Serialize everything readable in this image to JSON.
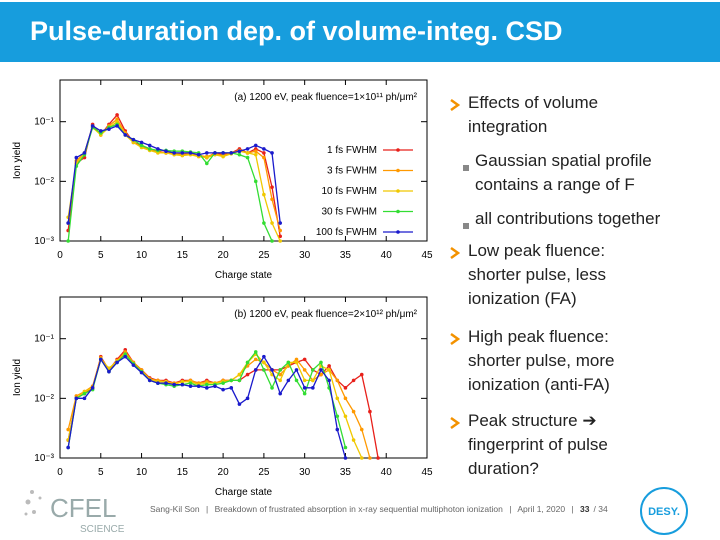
{
  "header": {
    "title": "Pulse-duration dep. of volume-integ. CSD"
  },
  "bullets": [
    {
      "level": 1,
      "lines": [
        "Effects of volume",
        "integration"
      ]
    },
    {
      "level": 2,
      "lines": [
        "Gaussian spatial profile",
        "contains a range of F"
      ]
    },
    {
      "level": 2,
      "lines": [
        "all contributions together"
      ]
    },
    {
      "level": 1,
      "lines": [
        "Low peak fluence:",
        "shorter pulse, less",
        "ionization (FA)"
      ]
    },
    {
      "level": 1,
      "lines": [
        "High peak fluence:",
        "shorter pulse, more",
        "ionization (anti-FA)"
      ]
    },
    {
      "level": 1,
      "lines": [
        "Peak structure ➔",
        "fingerprint of pulse",
        "duration?"
      ]
    }
  ],
  "footer": {
    "parts": [
      "Sang-Kil Son",
      "|",
      "Breakdown of frustrated absorption in x-ray sequential multiphoton ionization",
      "|",
      "April 1, 2020",
      "|",
      "33",
      "/ 34"
    ]
  },
  "logos": {
    "left": "CFEL",
    "left_sub": "SCIENCE",
    "right": "DESY."
  },
  "chart_data": [
    {
      "type": "line",
      "title": "(a) 1200 eV, peak fluence=1×10¹¹ ph/μm²",
      "x_label": "Charge state",
      "y_label": "Ion yield",
      "log_y": true,
      "legend": "right",
      "xlim": [
        0,
        45
      ],
      "xticks": [
        0,
        5,
        10,
        15,
        20,
        25,
        30,
        35,
        40,
        45
      ],
      "ylim": [
        0.001,
        0.5
      ],
      "yticks": [
        {
          "value": 0.001,
          "label": "10⁻³"
        },
        {
          "value": 0.01,
          "label": "10⁻²"
        },
        {
          "value": 0.1,
          "label": "10⁻¹"
        }
      ],
      "x": [
        1,
        2,
        3,
        4,
        5,
        6,
        7,
        8,
        9,
        10,
        11,
        12,
        13,
        14,
        15,
        16,
        17,
        18,
        19,
        20,
        21,
        22,
        23,
        24,
        25,
        26,
        27
      ],
      "series": [
        {
          "name": "1 fs FWHM",
          "color": "#e8201a",
          "values": [
            0.0015,
            0.02,
            0.025,
            0.09,
            0.06,
            0.09,
            0.13,
            0.07,
            0.045,
            0.04,
            0.035,
            0.032,
            0.03,
            0.03,
            0.028,
            0.03,
            0.028,
            0.025,
            0.03,
            0.028,
            0.03,
            0.035,
            0.03,
            0.035,
            0.03,
            0.008,
            0.0012
          ]
        },
        {
          "name": "3 fs FWHM",
          "color": "#ff9900",
          "values": [
            0.002,
            0.022,
            0.03,
            0.085,
            0.06,
            0.085,
            0.11,
            0.065,
            0.045,
            0.038,
            0.034,
            0.031,
            0.03,
            0.029,
            0.028,
            0.029,
            0.027,
            0.026,
            0.029,
            0.027,
            0.03,
            0.033,
            0.03,
            0.032,
            0.025,
            0.005,
            0.0015
          ]
        },
        {
          "name": "10 fs FWHM",
          "color": "#f0c800",
          "values": [
            0.0025,
            0.02,
            0.03,
            0.08,
            0.06,
            0.08,
            0.1,
            0.06,
            0.045,
            0.037,
            0.033,
            0.03,
            0.03,
            0.028,
            0.027,
            0.028,
            0.026,
            0.025,
            0.028,
            0.026,
            0.029,
            0.032,
            0.03,
            0.028,
            0.006,
            0.002,
            0.001
          ]
        },
        {
          "name": "30 fs FWHM",
          "color": "#33dd33",
          "values": [
            0.001,
            0.018,
            0.028,
            0.08,
            0.065,
            0.08,
            0.09,
            0.06,
            0.05,
            0.04,
            0.035,
            0.033,
            0.033,
            0.032,
            0.032,
            0.031,
            0.03,
            0.02,
            0.03,
            0.03,
            0.03,
            0.028,
            0.025,
            0.01,
            0.002,
            0.001,
            null
          ]
        },
        {
          "name": "100 fs FWHM",
          "color": "#1a1acc",
          "values": [
            0.002,
            0.025,
            0.03,
            0.085,
            0.07,
            0.075,
            0.085,
            0.06,
            0.05,
            0.045,
            0.04,
            0.035,
            0.032,
            0.03,
            0.03,
            0.03,
            0.028,
            0.03,
            0.03,
            0.03,
            0.03,
            0.032,
            0.035,
            0.04,
            0.035,
            0.03,
            0.002
          ]
        }
      ]
    },
    {
      "type": "line",
      "title": "(b) 1200 eV, peak fluence=2×10¹² ph/μm²",
      "x_label": "Charge state",
      "y_label": "Ion yield",
      "log_y": true,
      "xlim": [
        0,
        45
      ],
      "xticks": [
        0,
        5,
        10,
        15,
        20,
        25,
        30,
        35,
        40,
        45
      ],
      "ylim": [
        0.001,
        0.5
      ],
      "yticks": [
        {
          "value": 0.001,
          "label": "10⁻³"
        },
        {
          "value": 0.01,
          "label": "10⁻²"
        },
        {
          "value": 0.1,
          "label": "10⁻¹"
        }
      ],
      "x": [
        1,
        2,
        3,
        4,
        5,
        6,
        7,
        8,
        9,
        10,
        11,
        12,
        13,
        14,
        15,
        16,
        17,
        18,
        19,
        20,
        21,
        22,
        23,
        24,
        25,
        26,
        27,
        28,
        29,
        30,
        31,
        32,
        33,
        34,
        35,
        36,
        37,
        38,
        39
      ],
      "series": [
        {
          "color": "#e8201a",
          "values": [
            0.002,
            0.01,
            0.012,
            0.015,
            0.05,
            0.03,
            0.045,
            0.065,
            0.04,
            0.03,
            0.022,
            0.02,
            0.02,
            0.018,
            0.02,
            0.02,
            0.018,
            0.02,
            0.018,
            0.02,
            0.02,
            0.02,
            0.025,
            0.03,
            0.03,
            0.03,
            0.03,
            0.035,
            0.04,
            0.045,
            0.03,
            0.025,
            0.035,
            0.02,
            0.015,
            0.02,
            0.025,
            0.006,
            0.001
          ]
        },
        {
          "color": "#ff9900",
          "values": [
            0.003,
            0.011,
            0.013,
            0.016,
            0.048,
            0.03,
            0.043,
            0.06,
            0.04,
            0.03,
            0.021,
            0.02,
            0.019,
            0.018,
            0.019,
            0.02,
            0.018,
            0.019,
            0.018,
            0.02,
            0.02,
            0.025,
            0.035,
            0.045,
            0.04,
            0.03,
            0.025,
            0.035,
            0.045,
            0.03,
            0.02,
            0.025,
            0.03,
            0.02,
            0.01,
            0.006,
            0.003,
            0.001,
            null
          ]
        },
        {
          "color": "#f0c800",
          "values": [
            0.002,
            0.01,
            0.013,
            0.015,
            0.045,
            0.032,
            0.042,
            0.055,
            0.038,
            0.028,
            0.021,
            0.019,
            0.019,
            0.017,
            0.019,
            0.019,
            0.017,
            0.018,
            0.018,
            0.019,
            0.02,
            0.025,
            0.04,
            0.055,
            0.04,
            0.025,
            0.02,
            0.04,
            0.04,
            0.02,
            0.02,
            0.035,
            0.03,
            0.01,
            0.005,
            0.002,
            0.001,
            null,
            null
          ]
        },
        {
          "color": "#33dd33",
          "values": [
            0.0015,
            0.01,
            0.012,
            0.014,
            0.045,
            0.028,
            0.04,
            0.055,
            0.038,
            0.028,
            0.02,
            0.018,
            0.017,
            0.016,
            0.017,
            0.018,
            0.016,
            0.017,
            0.017,
            0.018,
            0.02,
            0.02,
            0.04,
            0.06,
            0.03,
            0.015,
            0.03,
            0.04,
            0.02,
            0.012,
            0.03,
            0.04,
            0.015,
            0.005,
            0.0015,
            null,
            null,
            null,
            null
          ]
        },
        {
          "color": "#1a1acc",
          "values": [
            0.0015,
            0.01,
            0.01,
            0.015,
            0.045,
            0.028,
            0.04,
            0.05,
            0.036,
            0.027,
            0.02,
            0.018,
            0.018,
            0.017,
            0.017,
            0.016,
            0.016,
            0.015,
            0.016,
            0.014,
            0.015,
            0.008,
            0.01,
            0.03,
            0.05,
            0.03,
            0.012,
            0.02,
            0.03,
            0.015,
            0.015,
            0.03,
            0.02,
            0.003,
            0.001,
            null,
            null,
            null,
            null
          ]
        }
      ]
    }
  ]
}
